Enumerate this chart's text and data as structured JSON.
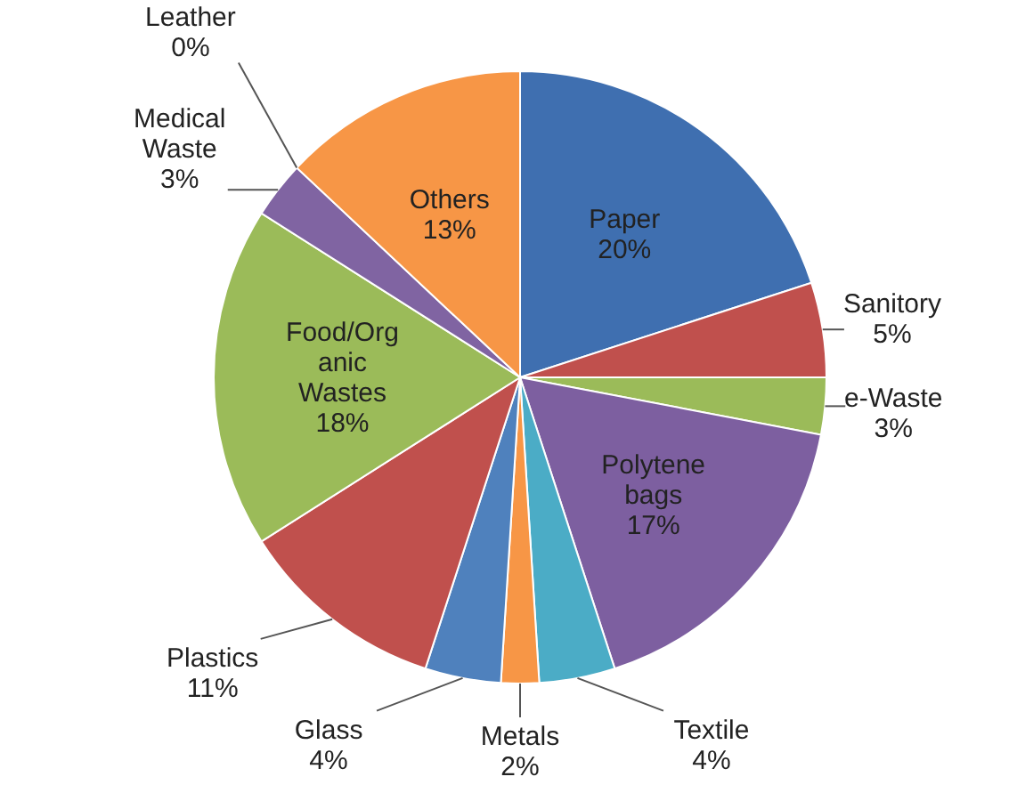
{
  "chart_data": {
    "type": "pie",
    "categories": [
      "Paper",
      "Sanitory",
      "e-Waste",
      "Polytene bags",
      "Textile",
      "Metals",
      "Glass",
      "Plastics",
      "Food/Organic Wastes",
      "Medical Waste",
      "Leather",
      "Others"
    ],
    "values": [
      20,
      5,
      3,
      17,
      4,
      2,
      4,
      11,
      18,
      3,
      0,
      13
    ],
    "value_labels": [
      "20%",
      "5%",
      "3%",
      "17%",
      "4%",
      "2%",
      "4%",
      "11%",
      "18%",
      "3%",
      "0%",
      "13%"
    ],
    "colors": [
      "#3f6fb0",
      "#c0504d",
      "#9bbb59",
      "#7d5fa0",
      "#4bacc6",
      "#f79646",
      "#4f81bd",
      "#c0504d",
      "#9bbb59",
      "#8064a2",
      "#4bacc6",
      "#f79646"
    ]
  }
}
